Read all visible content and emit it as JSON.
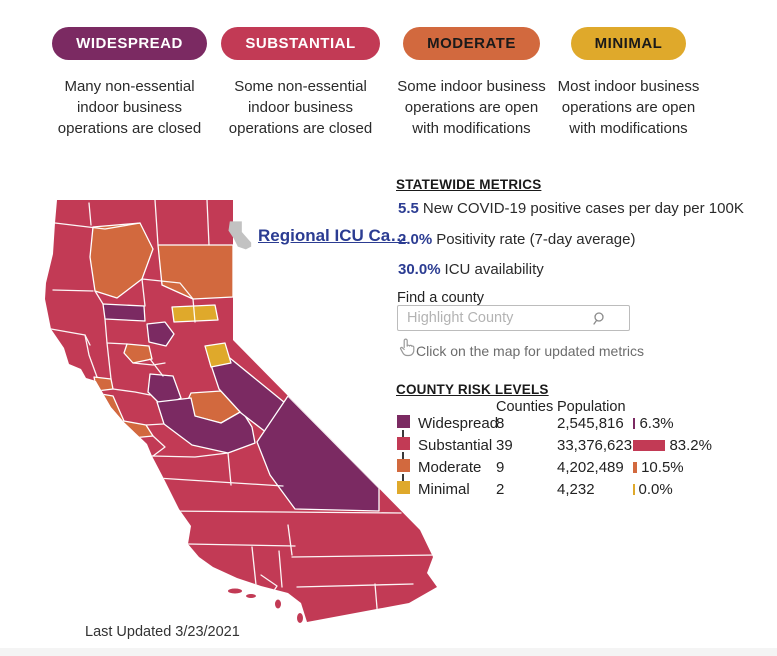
{
  "colors": {
    "widespread": "#7B2A62",
    "substantial": "#C23A55",
    "moderate": "#D2693E",
    "minimal": "#DFA92B",
    "metric": "#2B3C92",
    "link": "#2B3C92"
  },
  "tiers": [
    {
      "label": "WIDESPREAD",
      "label_color": "#FFFFFF",
      "color": "#7B2A62",
      "description": "Many non-essential indoor business operations are closed"
    },
    {
      "label": "SUBSTANTIAL",
      "label_color": "#FFFFFF",
      "color": "#C23A55",
      "description": "Some non-essential indoor business operations are closed"
    },
    {
      "label": "MODERATE",
      "label_color": "#1A1A1A",
      "color": "#D2693E",
      "description": "Some indoor business operations are open with modifications"
    },
    {
      "label": "MINIMAL",
      "label_color": "#1A1A1A",
      "color": "#DFA92B",
      "description": "Most indoor business operations are open with modifications"
    }
  ],
  "map": {
    "overlay_link": "Regional ICU Ca…",
    "last_updated": "Last Updated 3/23/2021"
  },
  "statewide_metrics": {
    "heading": "STATEWIDE METRICS",
    "items": [
      {
        "value": "5.5",
        "text": "New COVID-19 positive cases per day per 100K"
      },
      {
        "value": "2.0%",
        "text": "Positivity rate (7-day average)"
      },
      {
        "value": "30.0%",
        "text": "ICU availability"
      }
    ]
  },
  "county_search": {
    "label": "Find a county",
    "placeholder": "Highlight County",
    "hint": "Click on the map for updated metrics"
  },
  "risk_table": {
    "heading": "COUNTY RISK LEVELS",
    "columns": {
      "counties": "Counties",
      "population": "Population"
    },
    "rows": [
      {
        "label": "Widespread",
        "color": "#7B2A62",
        "counties": "8",
        "population": "2,545,816",
        "share": "6.3%"
      },
      {
        "label": "Substantial",
        "color": "#C23A55",
        "counties": "39",
        "population": "33,376,623",
        "share": "83.2%"
      },
      {
        "label": "Moderate",
        "color": "#D2693E",
        "counties": "9",
        "population": "4,202,489",
        "share": "10.5%"
      },
      {
        "label": "Minimal",
        "color": "#DFA92B",
        "counties": "2",
        "population": "4,232",
        "share": "0.0%"
      }
    ]
  }
}
